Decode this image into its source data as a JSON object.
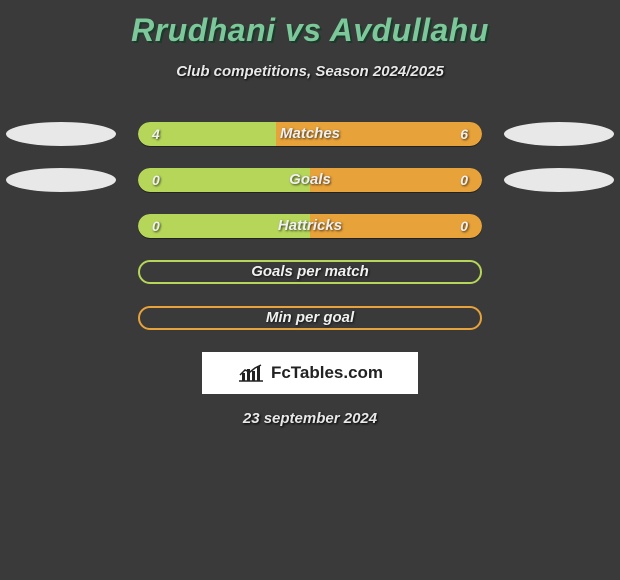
{
  "header": {
    "title": "Rrudhani vs Avdullahu",
    "subtitle": "Club competitions, Season 2024/2025"
  },
  "colors": {
    "title": "#7cc89a",
    "left": "#b6d65a",
    "right": "#e8a23a",
    "ellipse_left": "#e8e8e8",
    "ellipse_right": "#e8e8e8",
    "bg": "#3a3a3a"
  },
  "stat_rows": [
    {
      "label": "Matches",
      "left_value": "4",
      "right_value": "6",
      "left_pct": 40,
      "right_pct": 60,
      "show_ellipses": true
    },
    {
      "label": "Goals",
      "left_value": "0",
      "right_value": "0",
      "left_pct": 50,
      "right_pct": 50,
      "show_ellipses": true
    },
    {
      "label": "Hattricks",
      "left_value": "0",
      "right_value": "0",
      "left_pct": 50,
      "right_pct": 50,
      "show_ellipses": false
    }
  ],
  "empty_rows": [
    {
      "label": "Goals per match",
      "border_color": "#b6d65a"
    },
    {
      "label": "Min per goal",
      "border_color": "#e8a23a"
    }
  ],
  "footer": {
    "logo_text": "FcTables.com",
    "date": "23 september 2024"
  }
}
